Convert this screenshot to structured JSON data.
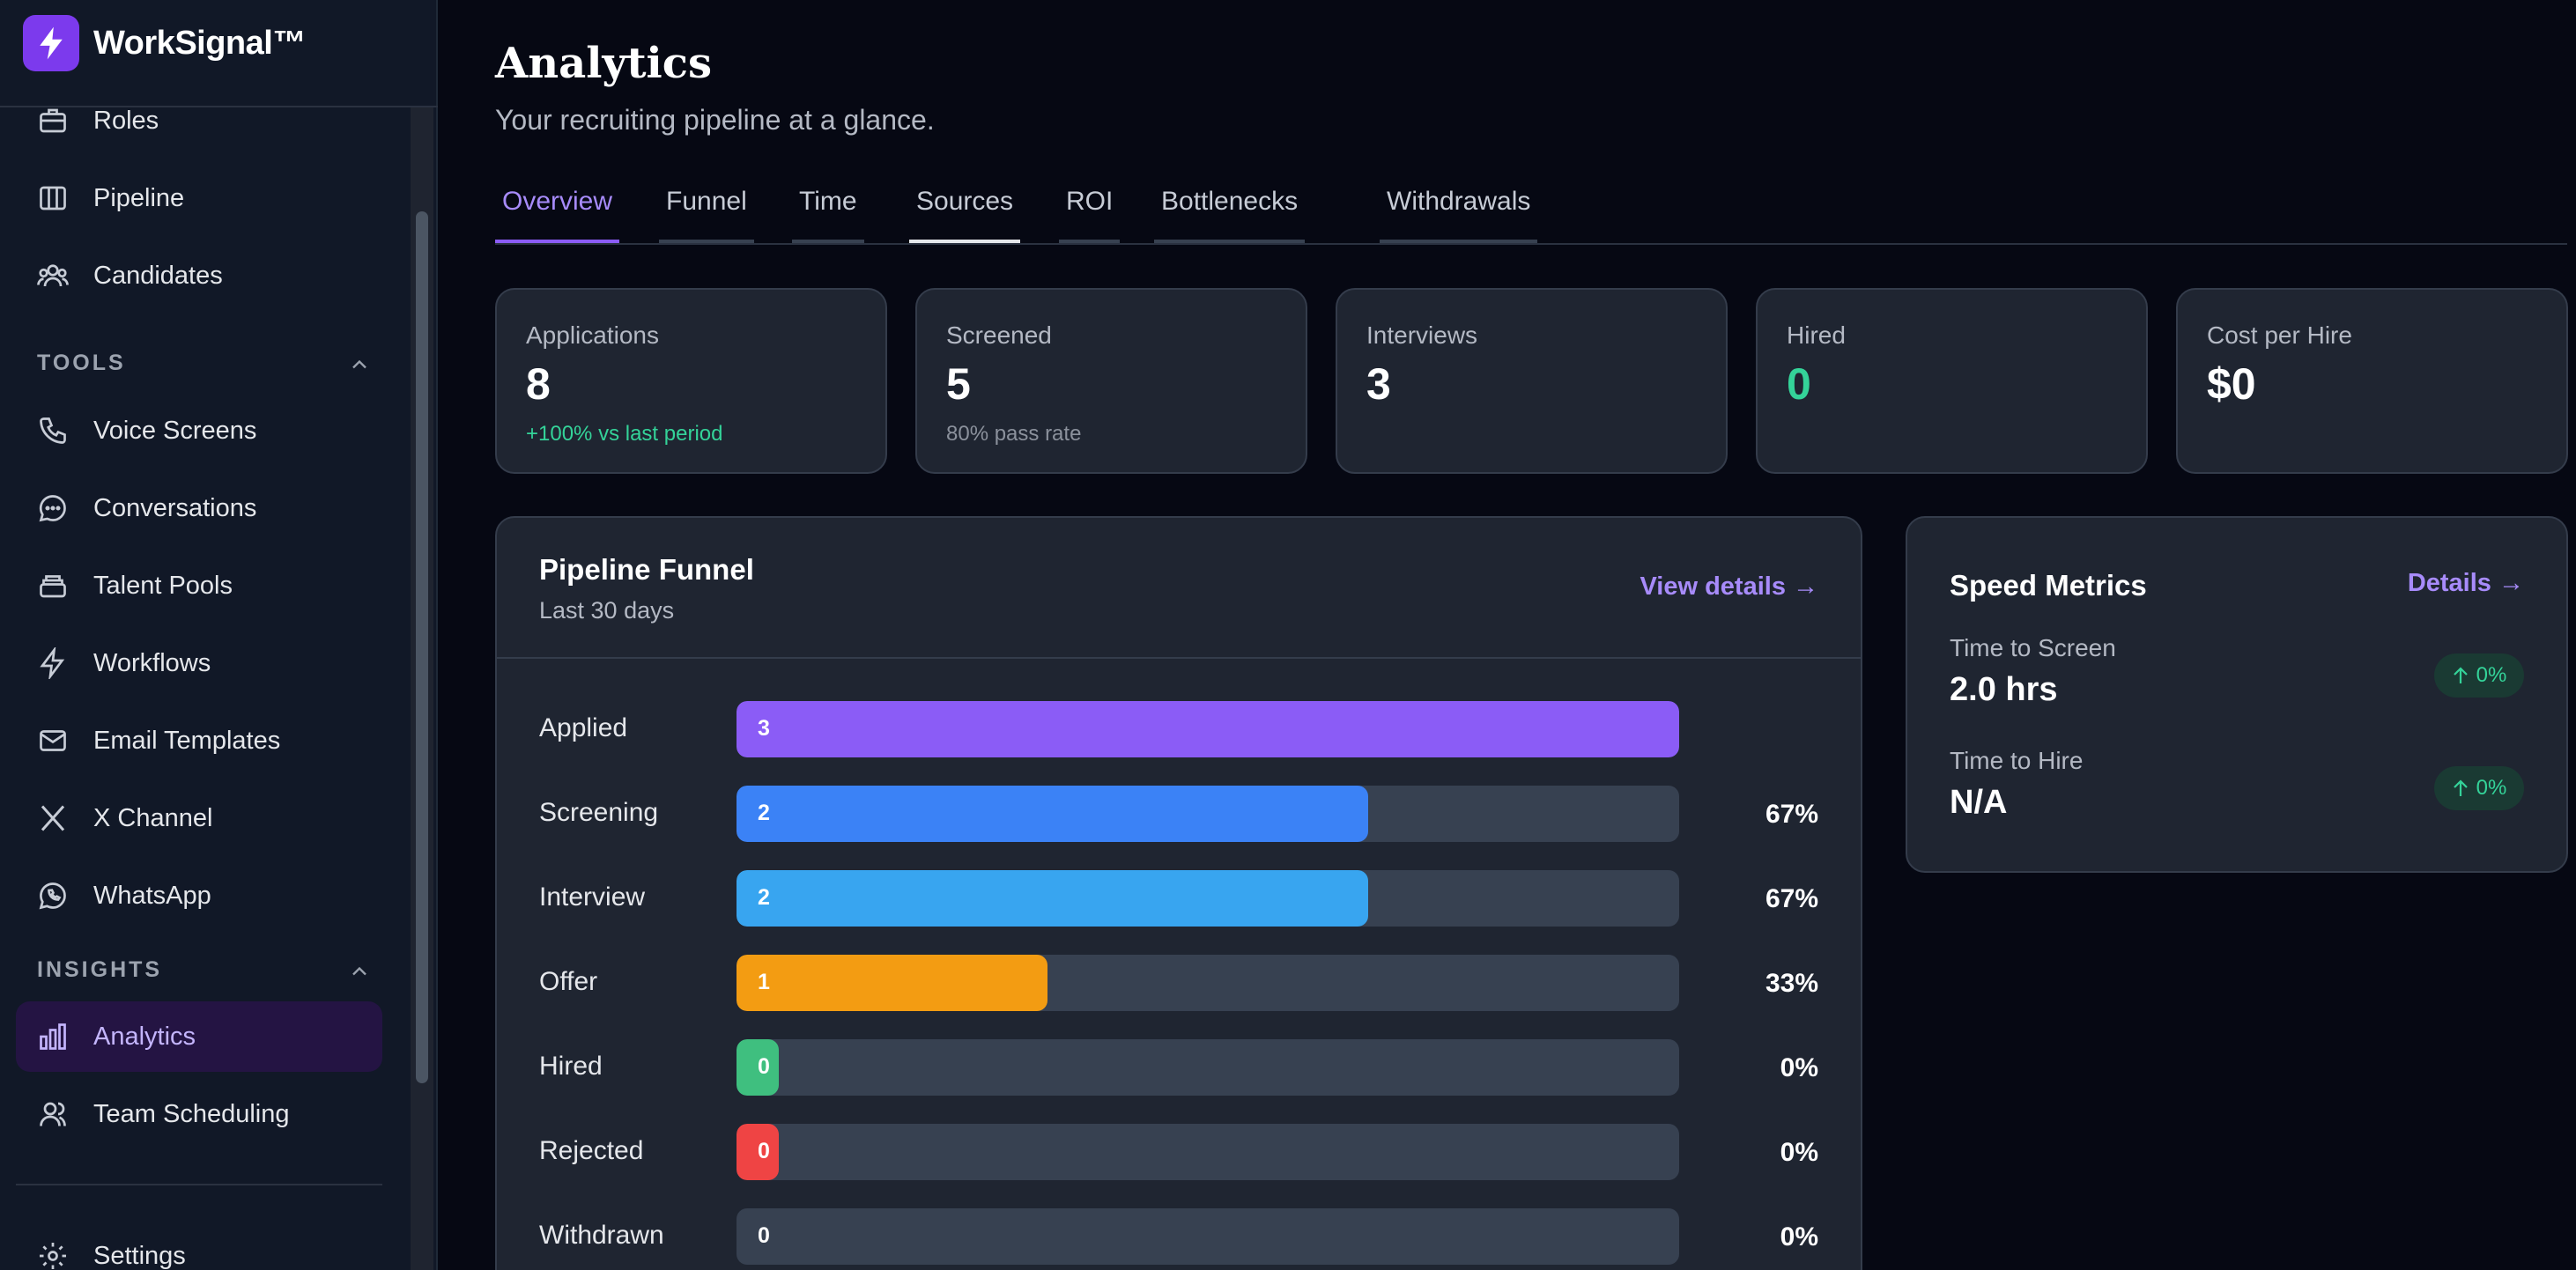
{
  "app": {
    "name": "WorkSignal™"
  },
  "sidebar": {
    "items_top": [
      {
        "label": "Roles",
        "icon": "briefcase-icon"
      },
      {
        "label": "Pipeline",
        "icon": "columns-icon"
      },
      {
        "label": "Candidates",
        "icon": "users-icon"
      }
    ],
    "tools_label": "TOOLS",
    "tools": [
      {
        "label": "Voice Screens",
        "icon": "phone-icon"
      },
      {
        "label": "Conversations",
        "icon": "chat-bubble-icon"
      },
      {
        "label": "Talent Pools",
        "icon": "stack-icon"
      },
      {
        "label": "Workflows",
        "icon": "lightning-icon"
      },
      {
        "label": "Email Templates",
        "icon": "mail-icon"
      },
      {
        "label": "X Channel",
        "icon": "x-logo-icon"
      },
      {
        "label": "WhatsApp",
        "icon": "whatsapp-icon"
      }
    ],
    "insights_label": "INSIGHTS",
    "insights": [
      {
        "label": "Analytics",
        "icon": "bar-chart-icon",
        "active": true
      },
      {
        "label": "Team Scheduling",
        "icon": "team-icon"
      }
    ],
    "settings": {
      "label": "Settings",
      "icon": "gear-icon"
    }
  },
  "header": {
    "title": "Analytics",
    "subtitle": "Your recruiting pipeline at a glance."
  },
  "tabs": [
    {
      "label": "Overview",
      "active": true
    },
    {
      "label": "Funnel"
    },
    {
      "label": "Time"
    },
    {
      "label": "Sources"
    },
    {
      "label": "ROI"
    },
    {
      "label": "Bottlenecks"
    },
    {
      "label": "Withdrawals"
    }
  ],
  "stats": [
    {
      "label": "Applications",
      "value": "8",
      "delta": "+100% vs last period"
    },
    {
      "label": "Screened",
      "value": "5",
      "delta": "80% pass rate"
    },
    {
      "label": "Interviews",
      "value": "3"
    },
    {
      "label": "Hired",
      "value": "0"
    },
    {
      "label": "Cost per Hire",
      "value": "$0"
    }
  ],
  "funnel": {
    "title": "Pipeline Funnel",
    "subtitle": "Last 30 days",
    "link": "View details →",
    "rows": [
      {
        "label": "Applied",
        "value": "3",
        "fraction": 1.0,
        "pct": "",
        "color": "#8b5cf6"
      },
      {
        "label": "Screening",
        "value": "2",
        "fraction": 0.67,
        "pct": "67%",
        "color": "#3b82f6"
      },
      {
        "label": "Interview",
        "value": "2",
        "fraction": 0.67,
        "pct": "67%",
        "color": "#38a5f0"
      },
      {
        "label": "Offer",
        "value": "1",
        "fraction": 0.33,
        "pct": "33%",
        "color": "#f39c12"
      },
      {
        "label": "Hired",
        "value": "0",
        "fraction": 0.0,
        "pct": "0%",
        "color": "#3fbf7f"
      },
      {
        "label": "Rejected",
        "value": "0",
        "fraction": 0.0,
        "pct": "0%",
        "color": "#ef4444"
      },
      {
        "label": "Withdrawn",
        "value": "0",
        "fraction": 0.0,
        "pct": "0%",
        "color": "#374151"
      }
    ]
  },
  "speed": {
    "title": "Speed Metrics",
    "link": "Details →",
    "metrics": [
      {
        "label": "Time to Screen",
        "value": "2.0 hrs",
        "change": "0%"
      },
      {
        "label": "Time to Hire",
        "value": "N/A",
        "change": "0%"
      }
    ]
  },
  "colors": {
    "accent": "#8b5cf6",
    "positive": "#34d399",
    "background": "#060813",
    "panel": "#1f2531"
  }
}
